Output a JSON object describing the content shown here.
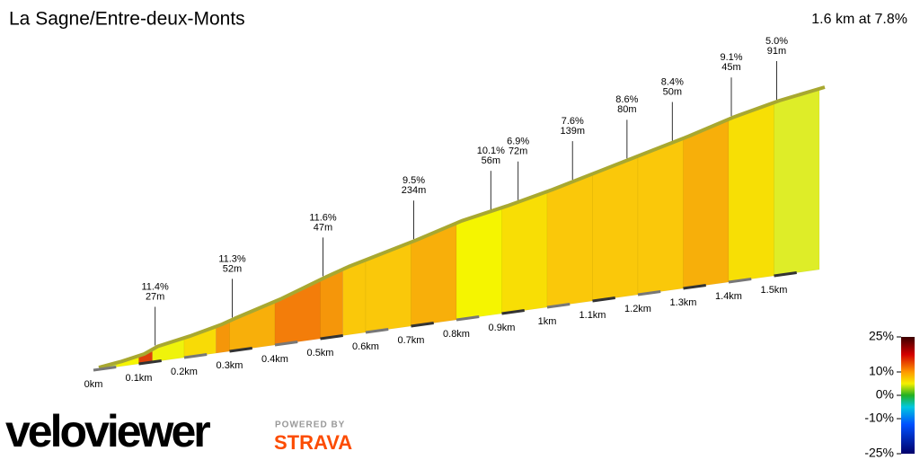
{
  "chart_data": {
    "type": "climb-profile",
    "title": "La Sagne/Entre-deux-Monts",
    "subtitle": "1.6 km at 7.8%",
    "profile": {
      "x": [
        0,
        0.05,
        0.1,
        0.13,
        0.2,
        0.27,
        0.3,
        0.4,
        0.5,
        0.55,
        0.6,
        0.7,
        0.8,
        0.9,
        1.0,
        1.1,
        1.2,
        1.3,
        1.4,
        1.5,
        1.6
      ],
      "y": [
        0,
        2,
        5,
        9,
        13,
        18,
        21,
        30,
        41,
        46,
        50,
        58,
        67,
        73,
        80,
        88,
        96,
        104,
        113,
        120,
        125
      ]
    },
    "xlim": [
      0,
      1.6
    ],
    "xticks": [
      {
        "value": 0,
        "label": "0km"
      },
      {
        "value": 0.1,
        "label": "0.1km"
      },
      {
        "value": 0.2,
        "label": "0.2km"
      },
      {
        "value": 0.3,
        "label": "0.3km"
      },
      {
        "value": 0.4,
        "label": "0.4km"
      },
      {
        "value": 0.5,
        "label": "0.5km"
      },
      {
        "value": 0.6,
        "label": "0.6km"
      },
      {
        "value": 0.7,
        "label": "0.7km"
      },
      {
        "value": 0.8,
        "label": "0.8km"
      },
      {
        "value": 0.9,
        "label": "0.9km"
      },
      {
        "value": 1,
        "label": "1km"
      },
      {
        "value": 1.1,
        "label": "1.1km"
      },
      {
        "value": 1.2,
        "label": "1.2km"
      },
      {
        "value": 1.3,
        "label": "1.3km"
      },
      {
        "value": 1.4,
        "label": "1.4km"
      },
      {
        "value": 1.5,
        "label": "1.5km"
      }
    ],
    "annotations": [
      {
        "x": 0.13,
        "grade": 11.4,
        "grade_label": "11.4%",
        "length": 27,
        "length_label": "27m"
      },
      {
        "x": 0.3,
        "grade": 11.3,
        "grade_label": "11.3%",
        "length": 52,
        "length_label": "52m"
      },
      {
        "x": 0.5,
        "grade": 11.6,
        "grade_label": "11.6%",
        "length": 47,
        "length_label": "47m"
      },
      {
        "x": 0.7,
        "grade": 9.5,
        "grade_label": "9.5%",
        "length": 234,
        "length_label": "234m"
      },
      {
        "x": 0.87,
        "grade": 10.1,
        "grade_label": "10.1%",
        "length": 56,
        "length_label": "56m"
      },
      {
        "x": 0.93,
        "grade": 6.9,
        "grade_label": "6.9%",
        "length": 72,
        "length_label": "72m"
      },
      {
        "x": 1.05,
        "grade": 7.6,
        "grade_label": "7.6%",
        "length": 139,
        "length_label": "139m"
      },
      {
        "x": 1.17,
        "grade": 8.6,
        "grade_label": "8.6%",
        "length": 80,
        "length_label": "80m"
      },
      {
        "x": 1.27,
        "grade": 8.4,
        "grade_label": "8.4%",
        "length": 50,
        "length_label": "50m"
      },
      {
        "x": 1.4,
        "grade": 9.1,
        "grade_label": "9.1%",
        "length": 45,
        "length_label": "45m"
      },
      {
        "x": 1.5,
        "grade": 5.0,
        "grade_label": "5.0%",
        "length": 91,
        "length_label": "91m"
      }
    ],
    "colorbar": {
      "lim": [
        -25,
        25
      ],
      "ticks": [
        {
          "value": 25,
          "label": "25%"
        },
        {
          "value": 10,
          "label": "10%"
        },
        {
          "value": 0,
          "label": "0%"
        },
        {
          "value": -10,
          "label": "-10%"
        },
        {
          "value": -25,
          "label": "-25%"
        }
      ]
    }
  },
  "branding": {
    "logo": "veloviewer",
    "powered_by": "POWERED BY",
    "partner": "STRAVA"
  }
}
